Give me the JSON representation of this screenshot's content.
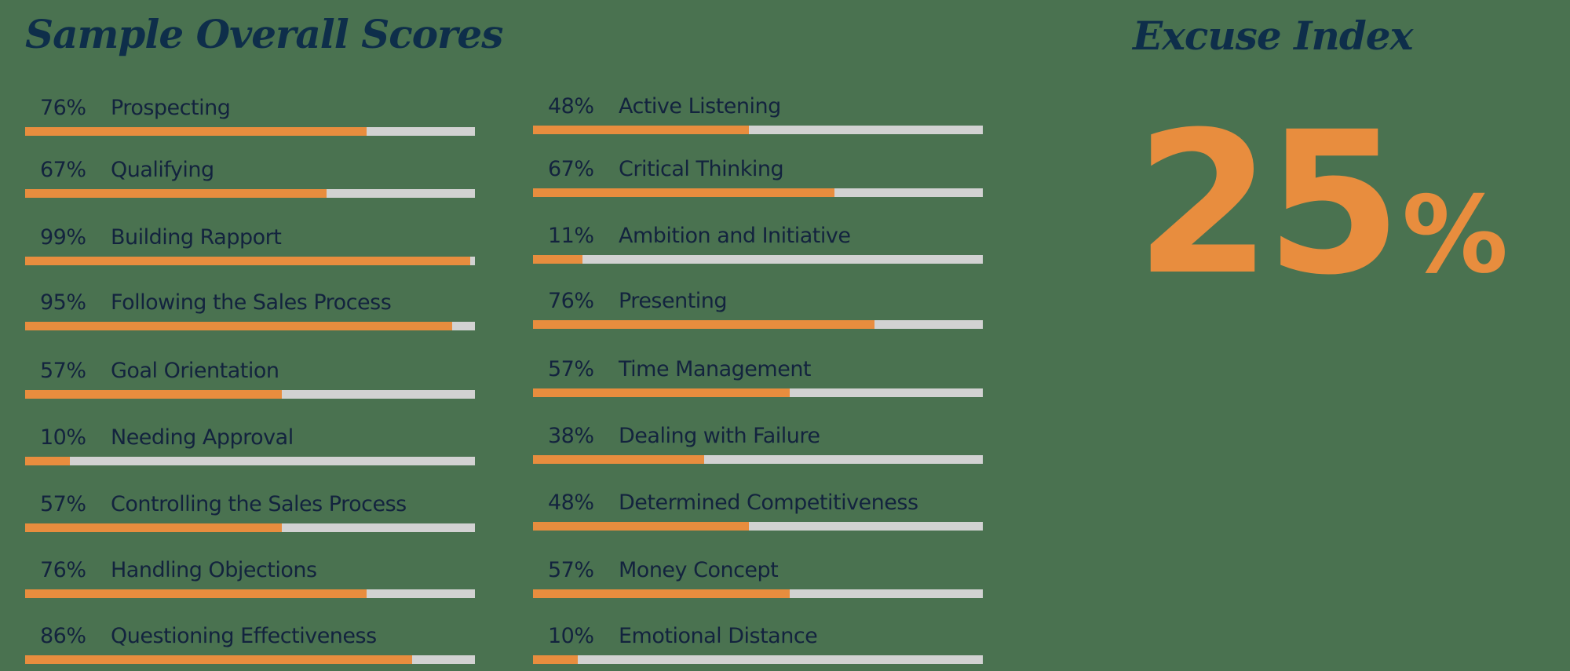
{
  "left_title": "Sample Overall Scores",
  "right_title": "Excuse Index",
  "excuse_index": {
    "value": "25",
    "symbol": "%"
  },
  "colors": {
    "background": "#4a7250",
    "fill": "#e88d3e",
    "track": "#d2d2d2",
    "text": "#13233e",
    "title": "#0e2e4a"
  },
  "chart_data": [
    {
      "type": "bar",
      "orientation": "horizontal",
      "title": "Sample Overall Scores",
      "xlabel": "",
      "ylabel": "",
      "xlim": [
        0,
        100
      ],
      "categories": [
        "Prospecting",
        "Qualifying",
        "Building Rapport",
        "Following the Sales Process",
        "Goal Orientation",
        "Needing Approval",
        "Controlling the Sales Process",
        "Handling Objections",
        "Questioning Effectiveness",
        "Active Listening",
        "Critical Thinking",
        "Ambition and Initiative",
        "Presenting",
        "Time Management",
        "Dealing with Failure",
        "Determined Competitiveness",
        "Money Concept",
        "Emotional Distance"
      ],
      "values": [
        76,
        67,
        99,
        95,
        57,
        10,
        57,
        76,
        86,
        48,
        67,
        11,
        76,
        57,
        38,
        48,
        57,
        10
      ]
    },
    {
      "type": "table",
      "title": "Excuse Index",
      "values": [
        25
      ],
      "unit": "%"
    }
  ],
  "left_rows": [
    {
      "pct": "76%",
      "label": "Prospecting",
      "value": 76
    },
    {
      "pct": "67%",
      "label": "Qualifying",
      "value": 67
    },
    {
      "pct": "99%",
      "label": "Building Rapport",
      "value": 99
    },
    {
      "pct": "95%",
      "label": "Following the Sales Process",
      "value": 95
    },
    {
      "pct": "57%",
      "label": "Goal Orientation",
      "value": 57
    },
    {
      "pct": "10%",
      "label": "Needing Approval",
      "value": 10
    },
    {
      "pct": "57%",
      "label": "Controlling the Sales Process",
      "value": 57
    },
    {
      "pct": "76%",
      "label": "Handling Objections",
      "value": 76
    },
    {
      "pct": "86%",
      "label": "Questioning Effectiveness",
      "value": 86
    }
  ],
  "right_rows": [
    {
      "pct": "48%",
      "label": "Active Listening",
      "value": 48
    },
    {
      "pct": "67%",
      "label": "Critical Thinking",
      "value": 67
    },
    {
      "pct": "11%",
      "label": "Ambition and Initiative",
      "value": 11
    },
    {
      "pct": "76%",
      "label": "Presenting",
      "value": 76
    },
    {
      "pct": "57%",
      "label": "Time Management",
      "value": 57
    },
    {
      "pct": "38%",
      "label": "Dealing with Failure",
      "value": 38
    },
    {
      "pct": "48%",
      "label": "Determined Competitiveness",
      "value": 48
    },
    {
      "pct": "57%",
      "label": "Money Concept",
      "value": 57
    },
    {
      "pct": "10%",
      "label": "Emotional Distance",
      "value": 10
    }
  ]
}
